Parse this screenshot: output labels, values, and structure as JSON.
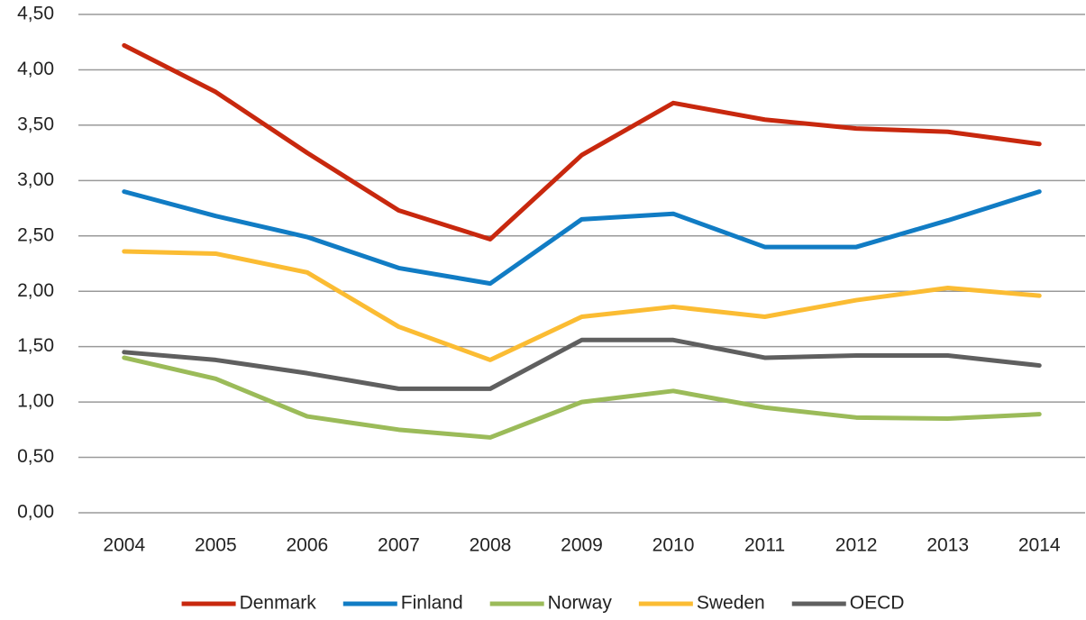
{
  "chart_data": {
    "type": "line",
    "categories": [
      "2004",
      "2005",
      "2006",
      "2007",
      "2008",
      "2009",
      "2010",
      "2011",
      "2012",
      "2013",
      "2014"
    ],
    "series": [
      {
        "name": "Denmark",
        "color": "#c8280e",
        "values": [
          4.22,
          3.8,
          3.25,
          2.73,
          2.47,
          3.23,
          3.7,
          3.55,
          3.47,
          3.44,
          3.33
        ]
      },
      {
        "name": "Finland",
        "color": "#117cc4",
        "values": [
          2.9,
          2.68,
          2.49,
          2.21,
          2.07,
          2.65,
          2.7,
          2.4,
          2.4,
          2.64,
          2.9
        ]
      },
      {
        "name": "Norway",
        "color": "#9bbb59",
        "values": [
          1.4,
          1.21,
          0.87,
          0.75,
          0.68,
          1.0,
          1.1,
          0.95,
          0.86,
          0.85,
          0.89
        ]
      },
      {
        "name": "Sweden",
        "color": "#fbbc33",
        "values": [
          2.36,
          2.34,
          2.17,
          1.68,
          1.38,
          1.77,
          1.86,
          1.77,
          1.92,
          2.03,
          1.96
        ]
      },
      {
        "name": "OECD",
        "color": "#5f5f5f",
        "values": [
          1.45,
          1.38,
          1.26,
          1.12,
          1.12,
          1.56,
          1.56,
          1.4,
          1.42,
          1.42,
          1.33
        ]
      }
    ],
    "ylim": [
      0,
      4.5
    ],
    "yticks": [
      {
        "value": 0,
        "label": "0,00"
      },
      {
        "value": 0.5,
        "label": "0,50"
      },
      {
        "value": 1,
        "label": "1,00"
      },
      {
        "value": 1.5,
        "label": "1,50"
      },
      {
        "value": 2,
        "label": "2,00"
      },
      {
        "value": 2.5,
        "label": "2,50"
      },
      {
        "value": 3,
        "label": "3,00"
      },
      {
        "value": 3.5,
        "label": "3,50"
      },
      {
        "value": 4,
        "label": "4,00"
      },
      {
        "value": 4.5,
        "label": "4,50"
      }
    ],
    "grid": true,
    "legend": "bottom"
  }
}
